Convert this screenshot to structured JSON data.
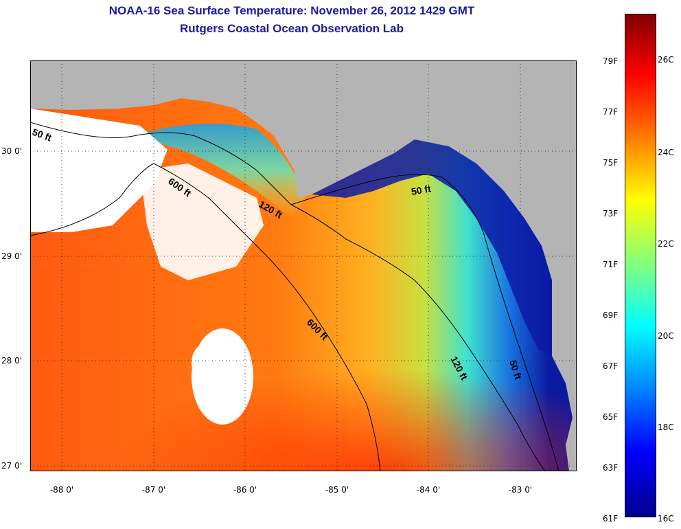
{
  "header": {
    "title": "NOAA-16 Sea Surface Temperature:  November 26, 2012 1429 GMT",
    "subtitle": "Rutgers Coastal Ocean Observation Lab"
  },
  "map": {
    "latitude_labels": [
      "30 0'",
      "29 0'",
      "28 0'",
      "27 0'"
    ],
    "longitude_labels": [
      "-88 0'",
      "-87 0'",
      "-86 0'",
      "-85 0'",
      "-84 0'",
      "-83 0'"
    ],
    "contour_labels": [
      "50 ft",
      "600 ft",
      "120 ft",
      "50 ft",
      "600 ft",
      "120 ft",
      "50 ft"
    ],
    "colors": {
      "land": "#b4b4b4",
      "no_data": "#ffffff",
      "contour": "#000000"
    }
  },
  "colorbar": {
    "fahrenheit_labels": [
      "79F",
      "77F",
      "75F",
      "73F",
      "71F",
      "69F",
      "67F",
      "65F",
      "63F",
      "61F"
    ],
    "celsius_labels": [
      "26C",
      "24C",
      "22C",
      "20C",
      "18C",
      "16C"
    ],
    "colors": [
      "#00008f",
      "#0000ff",
      "#0080ff",
      "#00ffff",
      "#80ff80",
      "#ffff00",
      "#ff8000",
      "#ff0000",
      "#800000"
    ]
  }
}
